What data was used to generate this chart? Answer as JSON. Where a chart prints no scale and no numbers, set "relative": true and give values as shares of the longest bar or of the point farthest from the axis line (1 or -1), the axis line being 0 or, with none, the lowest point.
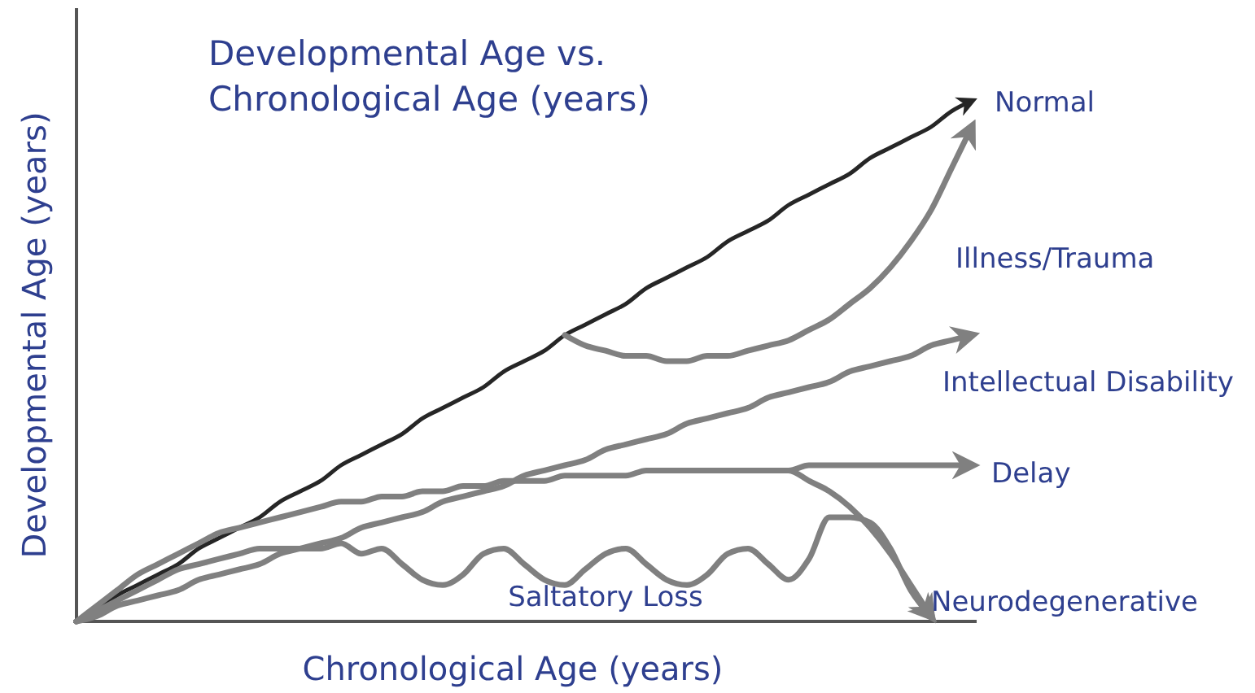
{
  "chart_data": {
    "type": "line",
    "title": "Developmental Age vs.\nChronological Age (years)",
    "xlabel": "Chronological Age (years)",
    "ylabel": "Developmental Age (years)",
    "relative": true,
    "grid": false,
    "categories": [
      null,
      null,
      null,
      null,
      null,
      null,
      null,
      null,
      null,
      null,
      null,
      null,
      null,
      null,
      null,
      null,
      null,
      null,
      null,
      null,
      null,
      null,
      null,
      null,
      null,
      null,
      null,
      null,
      null,
      null,
      null,
      null,
      null,
      null,
      null,
      null,
      null,
      null,
      null,
      null,
      null,
      null,
      null,
      null,
      null
    ],
    "series": [
      {
        "name": "Normal",
        "color": "#262626",
        "values": [
          0,
          0.02,
          0.05,
          0.07,
          0.09,
          0.11,
          0.14,
          0.16,
          0.18,
          0.2,
          0.23,
          0.25,
          0.27,
          0.3,
          0.32,
          0.34,
          0.36,
          0.39,
          0.41,
          0.43,
          0.45,
          0.48,
          0.5,
          0.52,
          0.55,
          0.57,
          0.59,
          0.61,
          0.64,
          0.66,
          0.68,
          0.7,
          0.73,
          0.75,
          0.77,
          0.8,
          0.82,
          0.84,
          0.86,
          0.89,
          0.91,
          0.93,
          0.95,
          0.98,
          1
        ]
      },
      {
        "name": "Illness/Trauma",
        "color": "#808080",
        "values": [
          null,
          null,
          null,
          null,
          null,
          null,
          null,
          null,
          null,
          null,
          null,
          null,
          null,
          null,
          null,
          null,
          null,
          null,
          null,
          null,
          null,
          null,
          null,
          null,
          0.55,
          0.53,
          0.52,
          0.51,
          0.51,
          0.5,
          0.5,
          0.51,
          0.51,
          0.52,
          0.53,
          0.54,
          0.56,
          0.58,
          0.61,
          0.64,
          0.68,
          0.73,
          0.79,
          0.87,
          0.95
        ]
      },
      {
        "name": "Intellectual Disability",
        "color": "#808080",
        "values": [
          0,
          0.01,
          0.03,
          0.04,
          0.05,
          0.06,
          0.08,
          0.09,
          0.1,
          0.11,
          0.13,
          0.14,
          0.15,
          0.16,
          0.18,
          0.19,
          0.2,
          0.21,
          0.23,
          0.24,
          0.25,
          0.26,
          0.28,
          0.29,
          0.3,
          0.31,
          0.33,
          0.34,
          0.35,
          0.36,
          0.38,
          0.39,
          0.4,
          0.41,
          0.43,
          0.44,
          0.45,
          0.46,
          0.48,
          0.49,
          0.5,
          0.51,
          0.53,
          0.54,
          0.55
        ]
      },
      {
        "name": "Delay",
        "color": "#808080",
        "values": [
          0,
          0.03,
          0.06,
          0.09,
          0.11,
          0.13,
          0.15,
          0.17,
          0.18,
          0.19,
          0.2,
          0.21,
          0.22,
          0.23,
          0.23,
          0.24,
          0.24,
          0.25,
          0.25,
          0.26,
          0.26,
          0.27,
          0.27,
          0.27,
          0.28,
          0.28,
          0.28,
          0.28,
          0.29,
          0.29,
          0.29,
          0.29,
          0.29,
          0.29,
          0.29,
          0.29,
          0.3,
          0.3,
          0.3,
          0.3,
          0.3,
          0.3,
          0.3,
          0.3,
          0.3
        ]
      },
      {
        "name": "Neurodegenerative",
        "color": "#808080",
        "values": [
          null,
          null,
          null,
          null,
          null,
          null,
          null,
          null,
          null,
          null,
          null,
          null,
          null,
          null,
          null,
          null,
          null,
          null,
          null,
          null,
          null,
          null,
          null,
          null,
          null,
          null,
          null,
          null,
          null,
          null,
          null,
          null,
          null,
          null,
          0.29,
          0.29,
          0.27,
          0.25,
          0.22,
          0.18,
          0.13,
          0.07,
          0.01,
          null,
          null
        ]
      },
      {
        "name": "Saltatory Loss",
        "color": "#808080",
        "values": [
          0,
          0.02,
          0.04,
          0.06,
          0.08,
          0.1,
          0.11,
          0.12,
          0.13,
          0.14,
          0.14,
          0.14,
          0.14,
          0.15,
          0.13,
          0.14,
          0.11,
          0.08,
          0.07,
          0.09,
          0.13,
          0.14,
          0.11,
          0.08,
          0.07,
          0.1,
          0.13,
          0.14,
          0.11,
          0.08,
          0.07,
          0.09,
          0.13,
          0.14,
          0.11,
          0.08,
          0.12,
          0.2,
          0.2,
          0.19,
          0.14,
          0.06,
          0.01,
          null,
          null
        ]
      }
    ]
  }
}
